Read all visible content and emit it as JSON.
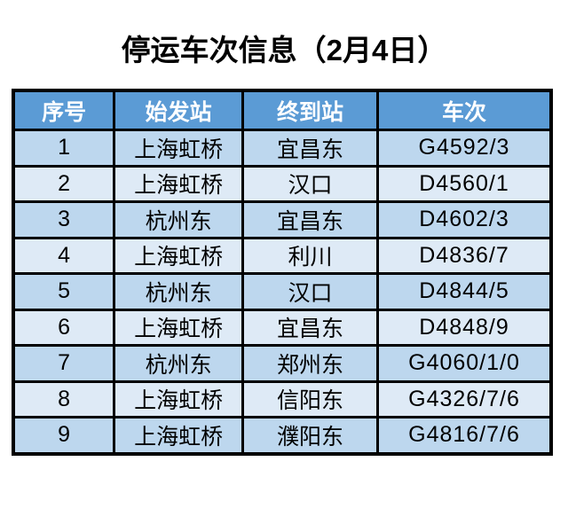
{
  "title": "停运车次信息（2月4日）",
  "colors": {
    "page_background": "#ffffff",
    "title_text": "#000000",
    "header_bg": "#5B9BD5",
    "header_text": "#ffffff",
    "row_odd_bg": "#BDD7EE",
    "row_even_bg": "#DEEAF6",
    "border": "#000000"
  },
  "table": {
    "headers": [
      "序号",
      "始发站",
      "终到站",
      "车次"
    ],
    "rows": [
      [
        "1",
        "上海虹桥",
        "宜昌东",
        "G4592/3"
      ],
      [
        "2",
        "上海虹桥",
        "汉口",
        "D4560/1"
      ],
      [
        "3",
        "杭州东",
        "宜昌东",
        "D4602/3"
      ],
      [
        "4",
        "上海虹桥",
        "利川",
        "D4836/7"
      ],
      [
        "5",
        "杭州东",
        "汉口",
        "D4844/5"
      ],
      [
        "6",
        "上海虹桥",
        "宜昌东",
        "D4848/9"
      ],
      [
        "7",
        "杭州东",
        "郑州东",
        "G4060/1/0"
      ],
      [
        "8",
        "上海虹桥",
        "信阳东",
        "G4326/7/6"
      ],
      [
        "9",
        "上海虹桥",
        "濮阳东",
        "G4816/7/6"
      ]
    ]
  },
  "chart_data": {
    "type": "table",
    "title": "停运车次信息（2月4日）",
    "columns": [
      "序号",
      "始发站",
      "终到站",
      "车次"
    ],
    "rows": [
      [
        "1",
        "上海虹桥",
        "宜昌东",
        "G4592/3"
      ],
      [
        "2",
        "上海虹桥",
        "汉口",
        "D4560/1"
      ],
      [
        "3",
        "杭州东",
        "宜昌东",
        "D4602/3"
      ],
      [
        "4",
        "上海虹桥",
        "利川",
        "D4836/7"
      ],
      [
        "5",
        "杭州东",
        "汉口",
        "D4844/5"
      ],
      [
        "6",
        "上海虹桥",
        "宜昌东",
        "D4848/9"
      ],
      [
        "7",
        "杭州东",
        "郑州东",
        "G4060/1/0"
      ],
      [
        "8",
        "上海虹桥",
        "信阳东",
        "G4326/7/6"
      ],
      [
        "9",
        "上海虹桥",
        "濮阳东",
        "G4816/7/6"
      ]
    ]
  }
}
